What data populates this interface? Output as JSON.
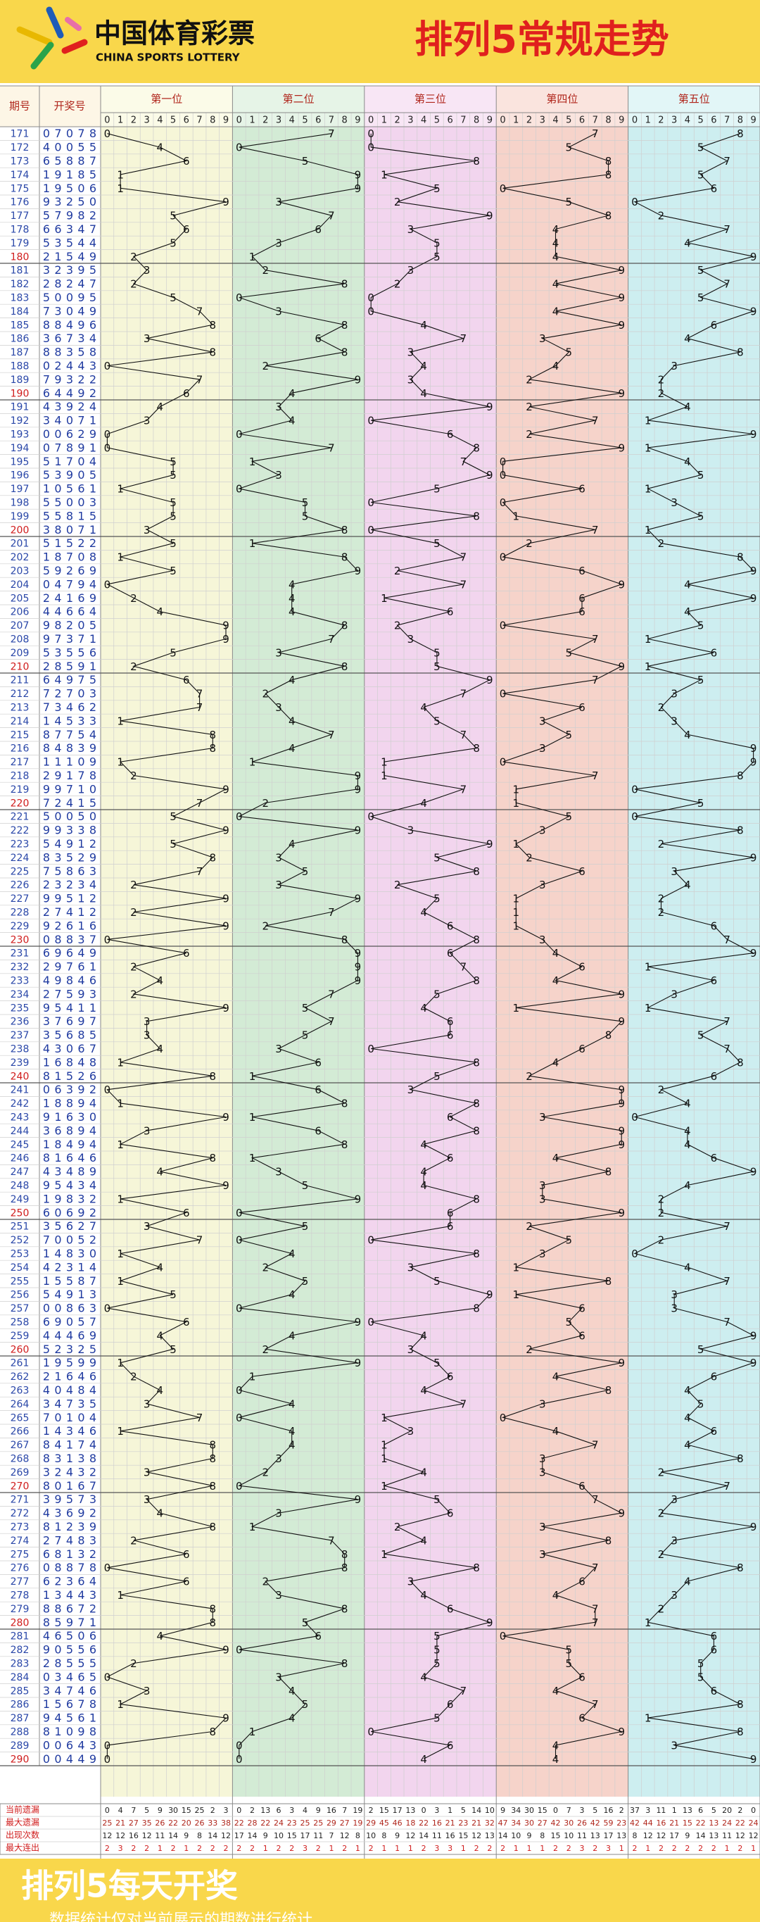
{
  "header": {
    "logo_cn": "中国体育彩票",
    "logo_en": "CHINA SPORTS LOTTERY",
    "title": "排列5常规走势"
  },
  "table": {
    "col_issue": "期号",
    "col_number": "开奖号",
    "positions": [
      "第一位",
      "第二位",
      "第三位",
      "第四位",
      "第五位"
    ],
    "digit_labels": [
      0,
      1,
      2,
      3,
      4,
      5,
      6,
      7,
      8,
      9
    ],
    "draws": [
      {
        "issue": 171,
        "digits": [
          0,
          7,
          0,
          7,
          8
        ]
      },
      {
        "issue": 172,
        "digits": [
          4,
          0,
          0,
          5,
          5
        ]
      },
      {
        "issue": 173,
        "digits": [
          6,
          5,
          8,
          8,
          7
        ]
      },
      {
        "issue": 174,
        "digits": [
          1,
          9,
          1,
          8,
          5
        ]
      },
      {
        "issue": 175,
        "digits": [
          1,
          9,
          5,
          0,
          6
        ]
      },
      {
        "issue": 176,
        "digits": [
          9,
          3,
          2,
          5,
          0
        ]
      },
      {
        "issue": 177,
        "digits": [
          5,
          7,
          9,
          8,
          2
        ]
      },
      {
        "issue": 178,
        "digits": [
          6,
          6,
          3,
          4,
          7
        ]
      },
      {
        "issue": 179,
        "digits": [
          5,
          3,
          5,
          4,
          4
        ]
      },
      {
        "issue": 180,
        "digits": [
          2,
          1,
          5,
          4,
          9
        ]
      },
      {
        "issue": 181,
        "digits": [
          3,
          2,
          3,
          9,
          5
        ]
      },
      {
        "issue": 182,
        "digits": [
          2,
          8,
          2,
          4,
          7
        ]
      },
      {
        "issue": 183,
        "digits": [
          5,
          0,
          0,
          9,
          5
        ]
      },
      {
        "issue": 184,
        "digits": [
          7,
          3,
          0,
          4,
          9
        ]
      },
      {
        "issue": 185,
        "digits": [
          8,
          8,
          4,
          9,
          6
        ]
      },
      {
        "issue": 186,
        "digits": [
          3,
          6,
          7,
          3,
          4
        ]
      },
      {
        "issue": 187,
        "digits": [
          8,
          8,
          3,
          5,
          8
        ]
      },
      {
        "issue": 188,
        "digits": [
          0,
          2,
          4,
          4,
          3
        ]
      },
      {
        "issue": 189,
        "digits": [
          7,
          9,
          3,
          2,
          2
        ]
      },
      {
        "issue": 190,
        "digits": [
          6,
          4,
          4,
          9,
          2
        ]
      },
      {
        "issue": 191,
        "digits": [
          4,
          3,
          9,
          2,
          4
        ]
      },
      {
        "issue": 192,
        "digits": [
          3,
          4,
          0,
          7,
          1
        ]
      },
      {
        "issue": 193,
        "digits": [
          0,
          0,
          6,
          2,
          9
        ]
      },
      {
        "issue": 194,
        "digits": [
          0,
          7,
          8,
          9,
          1
        ]
      },
      {
        "issue": 195,
        "digits": [
          5,
          1,
          7,
          0,
          4
        ]
      },
      {
        "issue": 196,
        "digits": [
          5,
          3,
          9,
          0,
          5
        ]
      },
      {
        "issue": 197,
        "digits": [
          1,
          0,
          5,
          6,
          1
        ]
      },
      {
        "issue": 198,
        "digits": [
          5,
          5,
          0,
          0,
          3
        ]
      },
      {
        "issue": 199,
        "digits": [
          5,
          5,
          8,
          1,
          5
        ]
      },
      {
        "issue": 200,
        "digits": [
          3,
          8,
          0,
          7,
          1
        ]
      },
      {
        "issue": 201,
        "digits": [
          5,
          1,
          5,
          2,
          2
        ]
      },
      {
        "issue": 202,
        "digits": [
          1,
          8,
          7,
          0,
          8
        ]
      },
      {
        "issue": 203,
        "digits": [
          5,
          9,
          2,
          6,
          9
        ]
      },
      {
        "issue": 204,
        "digits": [
          0,
          4,
          7,
          9,
          4
        ]
      },
      {
        "issue": 205,
        "digits": [
          2,
          4,
          1,
          6,
          9
        ]
      },
      {
        "issue": 206,
        "digits": [
          4,
          4,
          6,
          6,
          4
        ]
      },
      {
        "issue": 207,
        "digits": [
          9,
          8,
          2,
          0,
          5
        ]
      },
      {
        "issue": 208,
        "digits": [
          9,
          7,
          3,
          7,
          1
        ]
      },
      {
        "issue": 209,
        "digits": [
          5,
          3,
          5,
          5,
          6
        ]
      },
      {
        "issue": 210,
        "digits": [
          2,
          8,
          5,
          9,
          1
        ]
      },
      {
        "issue": 211,
        "digits": [
          6,
          4,
          9,
          7,
          5
        ]
      },
      {
        "issue": 212,
        "digits": [
          7,
          2,
          7,
          0,
          3
        ]
      },
      {
        "issue": 213,
        "digits": [
          7,
          3,
          4,
          6,
          2
        ]
      },
      {
        "issue": 214,
        "digits": [
          1,
          4,
          5,
          3,
          3
        ]
      },
      {
        "issue": 215,
        "digits": [
          8,
          7,
          7,
          5,
          4
        ]
      },
      {
        "issue": 216,
        "digits": [
          8,
          4,
          8,
          3,
          9
        ]
      },
      {
        "issue": 217,
        "digits": [
          1,
          1,
          1,
          0,
          9
        ]
      },
      {
        "issue": 218,
        "digits": [
          2,
          9,
          1,
          7,
          8
        ]
      },
      {
        "issue": 219,
        "digits": [
          9,
          9,
          7,
          1,
          0
        ]
      },
      {
        "issue": 220,
        "digits": [
          7,
          2,
          4,
          1,
          5
        ]
      },
      {
        "issue": 221,
        "digits": [
          5,
          0,
          0,
          5,
          0
        ]
      },
      {
        "issue": 222,
        "digits": [
          9,
          9,
          3,
          3,
          8
        ]
      },
      {
        "issue": 223,
        "digits": [
          5,
          4,
          9,
          1,
          2
        ]
      },
      {
        "issue": 224,
        "digits": [
          8,
          3,
          5,
          2,
          9
        ]
      },
      {
        "issue": 225,
        "digits": [
          7,
          5,
          8,
          6,
          3
        ]
      },
      {
        "issue": 226,
        "digits": [
          2,
          3,
          2,
          3,
          4
        ]
      },
      {
        "issue": 227,
        "digits": [
          9,
          9,
          5,
          1,
          2
        ]
      },
      {
        "issue": 228,
        "digits": [
          2,
          7,
          4,
          1,
          2
        ]
      },
      {
        "issue": 229,
        "digits": [
          9,
          2,
          6,
          1,
          6
        ]
      },
      {
        "issue": 230,
        "digits": [
          0,
          8,
          8,
          3,
          7
        ]
      },
      {
        "issue": 231,
        "digits": [
          6,
          9,
          6,
          4,
          9
        ]
      },
      {
        "issue": 232,
        "digits": [
          2,
          9,
          7,
          6,
          1
        ]
      },
      {
        "issue": 233,
        "digits": [
          4,
          9,
          8,
          4,
          6
        ]
      },
      {
        "issue": 234,
        "digits": [
          2,
          7,
          5,
          9,
          3
        ]
      },
      {
        "issue": 235,
        "digits": [
          9,
          5,
          4,
          1,
          1
        ]
      },
      {
        "issue": 236,
        "digits": [
          3,
          7,
          6,
          9,
          7
        ]
      },
      {
        "issue": 237,
        "digits": [
          3,
          5,
          6,
          8,
          5
        ]
      },
      {
        "issue": 238,
        "digits": [
          4,
          3,
          0,
          6,
          7
        ]
      },
      {
        "issue": 239,
        "digits": [
          1,
          6,
          8,
          4,
          8
        ]
      },
      {
        "issue": 240,
        "digits": [
          8,
          1,
          5,
          2,
          6
        ]
      },
      {
        "issue": 241,
        "digits": [
          0,
          6,
          3,
          9,
          2
        ]
      },
      {
        "issue": 242,
        "digits": [
          1,
          8,
          8,
          9,
          4
        ]
      },
      {
        "issue": 243,
        "digits": [
          9,
          1,
          6,
          3,
          0
        ]
      },
      {
        "issue": 244,
        "digits": [
          3,
          6,
          8,
          9,
          4
        ]
      },
      {
        "issue": 245,
        "digits": [
          1,
          8,
          4,
          9,
          4
        ]
      },
      {
        "issue": 246,
        "digits": [
          8,
          1,
          6,
          4,
          6
        ]
      },
      {
        "issue": 247,
        "digits": [
          4,
          3,
          4,
          8,
          9
        ]
      },
      {
        "issue": 248,
        "digits": [
          9,
          5,
          4,
          3,
          4
        ]
      },
      {
        "issue": 249,
        "digits": [
          1,
          9,
          8,
          3,
          2
        ]
      },
      {
        "issue": 250,
        "digits": [
          6,
          0,
          6,
          9,
          2
        ]
      },
      {
        "issue": 251,
        "digits": [
          3,
          5,
          6,
          2,
          7
        ]
      },
      {
        "issue": 252,
        "digits": [
          7,
          0,
          0,
          5,
          2
        ]
      },
      {
        "issue": 253,
        "digits": [
          1,
          4,
          8,
          3,
          0
        ]
      },
      {
        "issue": 254,
        "digits": [
          4,
          2,
          3,
          1,
          4
        ]
      },
      {
        "issue": 255,
        "digits": [
          1,
          5,
          5,
          8,
          7
        ]
      },
      {
        "issue": 256,
        "digits": [
          5,
          4,
          9,
          1,
          3
        ]
      },
      {
        "issue": 257,
        "digits": [
          0,
          0,
          8,
          6,
          3
        ]
      },
      {
        "issue": 258,
        "digits": [
          6,
          9,
          0,
          5,
          7
        ]
      },
      {
        "issue": 259,
        "digits": [
          4,
          4,
          4,
          6,
          9
        ]
      },
      {
        "issue": 260,
        "digits": [
          5,
          2,
          3,
          2,
          5
        ]
      },
      {
        "issue": 261,
        "digits": [
          1,
          9,
          5,
          9,
          9
        ]
      },
      {
        "issue": 262,
        "digits": [
          2,
          1,
          6,
          4,
          6
        ]
      },
      {
        "issue": 263,
        "digits": [
          4,
          0,
          4,
          8,
          4
        ]
      },
      {
        "issue": 264,
        "digits": [
          3,
          4,
          7,
          3,
          5
        ]
      },
      {
        "issue": 265,
        "digits": [
          7,
          0,
          1,
          0,
          4
        ]
      },
      {
        "issue": 266,
        "digits": [
          1,
          4,
          3,
          4,
          6
        ]
      },
      {
        "issue": 267,
        "digits": [
          8,
          4,
          1,
          7,
          4
        ]
      },
      {
        "issue": 268,
        "digits": [
          8,
          3,
          1,
          3,
          8
        ]
      },
      {
        "issue": 269,
        "digits": [
          3,
          2,
          4,
          3,
          2
        ]
      },
      {
        "issue": 270,
        "digits": [
          8,
          0,
          1,
          6,
          7
        ]
      },
      {
        "issue": 271,
        "digits": [
          3,
          9,
          5,
          7,
          3
        ]
      },
      {
        "issue": 272,
        "digits": [
          4,
          3,
          6,
          9,
          2
        ]
      },
      {
        "issue": 273,
        "digits": [
          8,
          1,
          2,
          3,
          9
        ]
      },
      {
        "issue": 274,
        "digits": [
          2,
          7,
          4,
          8,
          3
        ]
      },
      {
        "issue": 275,
        "digits": [
          6,
          8,
          1,
          3,
          2
        ]
      },
      {
        "issue": 276,
        "digits": [
          0,
          8,
          8,
          7,
          8
        ]
      },
      {
        "issue": 277,
        "digits": [
          6,
          2,
          3,
          6,
          4
        ]
      },
      {
        "issue": 278,
        "digits": [
          1,
          3,
          4,
          4,
          3
        ]
      },
      {
        "issue": 279,
        "digits": [
          8,
          8,
          6,
          7,
          2
        ]
      },
      {
        "issue": 280,
        "digits": [
          8,
          5,
          9,
          7,
          1
        ]
      },
      {
        "issue": 281,
        "digits": [
          4,
          6,
          5,
          0,
          6
        ]
      },
      {
        "issue": 282,
        "digits": [
          9,
          0,
          5,
          5,
          6
        ]
      },
      {
        "issue": 283,
        "digits": [
          2,
          8,
          5,
          5,
          5
        ]
      },
      {
        "issue": 284,
        "digits": [
          0,
          3,
          4,
          6,
          5
        ]
      },
      {
        "issue": 285,
        "digits": [
          3,
          4,
          7,
          4,
          6
        ]
      },
      {
        "issue": 286,
        "digits": [
          1,
          5,
          6,
          7,
          8
        ]
      },
      {
        "issue": 287,
        "digits": [
          9,
          4,
          5,
          6,
          1
        ]
      },
      {
        "issue": 288,
        "digits": [
          8,
          1,
          0,
          9,
          8
        ]
      },
      {
        "issue": 289,
        "digits": [
          0,
          0,
          6,
          4,
          3
        ]
      },
      {
        "issue": 290,
        "digits": [
          0,
          0,
          4,
          4,
          9
        ]
      }
    ],
    "stats": [
      {
        "label": "当前遗漏",
        "values": [
          0,
          4,
          7,
          5,
          9,
          30,
          15,
          25,
          2,
          3,
          0,
          2,
          13,
          6,
          3,
          4,
          9,
          16,
          7,
          19,
          2,
          15,
          17,
          13,
          0,
          3,
          1,
          5,
          14,
          10,
          9,
          34,
          30,
          15,
          0,
          7,
          3,
          5,
          16,
          2,
          37,
          3,
          11,
          1,
          13,
          6,
          5,
          20,
          2,
          0
        ]
      },
      {
        "label": "最大遗漏",
        "values": [
          25,
          21,
          27,
          35,
          26,
          22,
          20,
          26,
          33,
          38,
          22,
          28,
          22,
          24,
          23,
          25,
          25,
          29,
          27,
          19,
          29,
          45,
          46,
          18,
          22,
          16,
          21,
          23,
          21,
          32,
          47,
          34,
          30,
          27,
          42,
          30,
          26,
          42,
          59,
          23,
          42,
          44,
          16,
          21,
          15,
          22,
          13,
          24,
          22,
          24
        ]
      },
      {
        "label": "出现次数",
        "values": [
          12,
          12,
          16,
          12,
          11,
          14,
          9,
          8,
          14,
          12,
          17,
          14,
          9,
          10,
          15,
          17,
          11,
          7,
          12,
          8,
          10,
          8,
          9,
          12,
          14,
          11,
          16,
          15,
          12,
          13,
          14,
          10,
          9,
          8,
          15,
          10,
          11,
          13,
          17,
          13,
          8,
          12,
          12,
          17,
          9,
          14,
          13,
          11,
          12,
          12
        ]
      },
      {
        "label": "最大连出",
        "values": [
          2,
          3,
          2,
          2,
          1,
          2,
          1,
          2,
          2,
          2,
          2,
          2,
          1,
          2,
          2,
          3,
          2,
          1,
          2,
          1,
          2,
          1,
          1,
          1,
          2,
          3,
          3,
          1,
          2,
          2,
          2,
          1,
          1,
          1,
          2,
          2,
          3,
          2,
          3,
          1,
          2,
          1,
          2,
          2,
          2,
          2,
          2,
          1,
          2,
          1
        ]
      }
    ]
  },
  "footer": {
    "slogan": "排列5每天开奖",
    "note": "数据统计仅对当前展示的期数进行统计"
  }
}
